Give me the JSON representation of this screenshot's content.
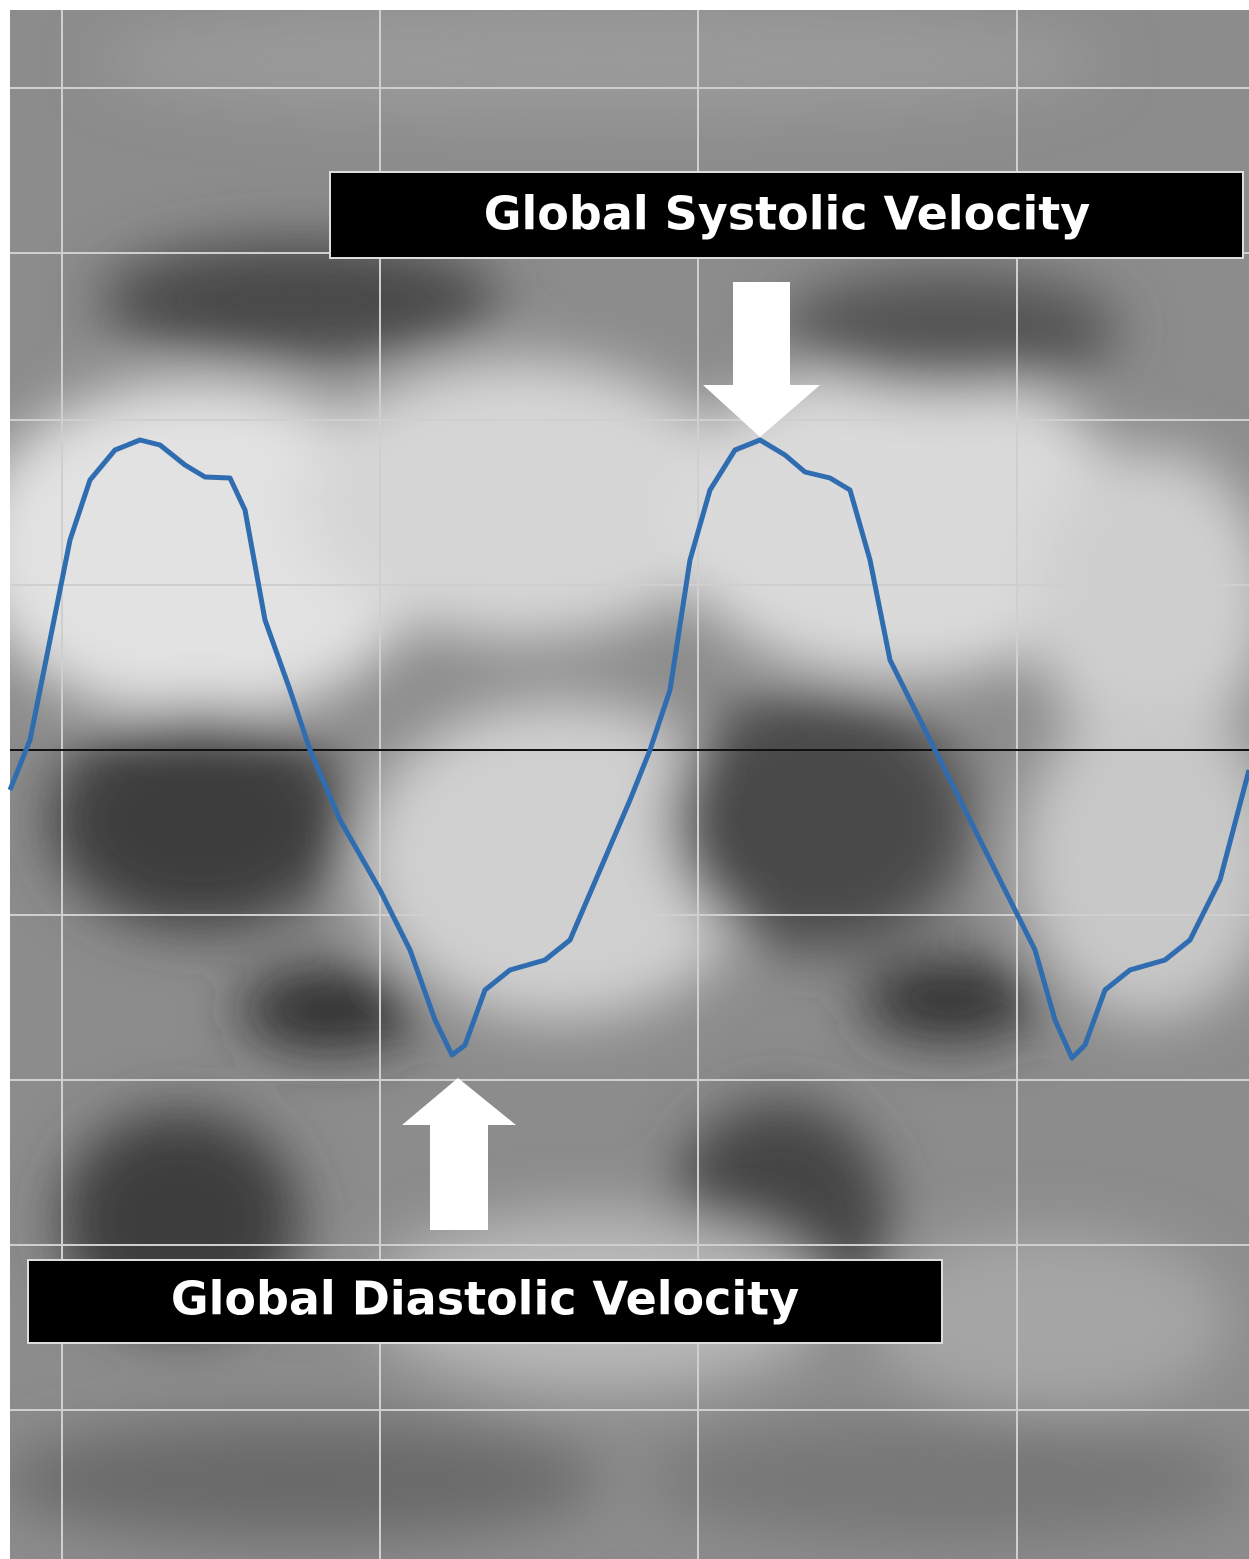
{
  "annotations": {
    "systolic": "Global Systolic Velocity",
    "diastolic": "Global Diastolic Velocity"
  }
}
